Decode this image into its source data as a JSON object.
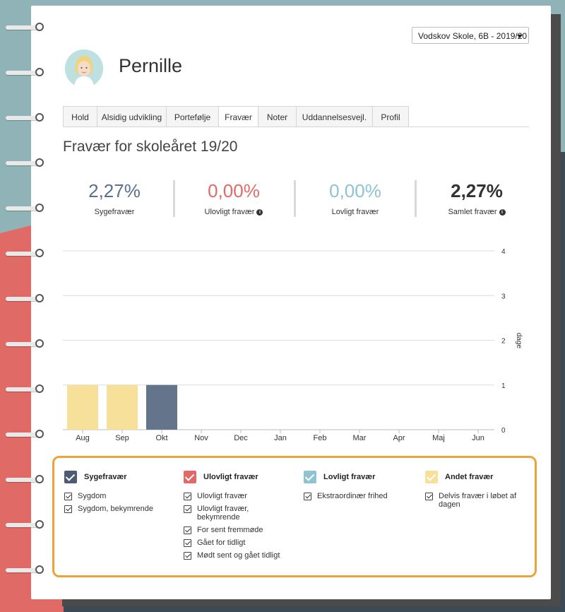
{
  "school_selector": {
    "value": "Vodskov Skole, 6B - 2019/20"
  },
  "student": {
    "name": "Pernille"
  },
  "tabs": [
    {
      "label": "Hold",
      "active": false
    },
    {
      "label": "Alsidig udvikling",
      "active": false
    },
    {
      "label": "Portefølje",
      "active": false
    },
    {
      "label": "Fravær",
      "active": true
    },
    {
      "label": "Noter",
      "active": false
    },
    {
      "label": "Uddannelsesvejl.",
      "active": false
    },
    {
      "label": "Profil",
      "active": false
    }
  ],
  "section_title": "Fravær for skoleåret 19/20",
  "stats": [
    {
      "value": "2,27%",
      "label": "Sygefravær",
      "info": false,
      "color": "#5b6f8e"
    },
    {
      "value": "0,00%",
      "label": "Ulovligt fravær",
      "info": true,
      "color": "#e06b66"
    },
    {
      "value": "0,00%",
      "label": "Lovligt fravær",
      "info": false,
      "color": "#8ec3cf"
    },
    {
      "value": "2,27%",
      "label": "Samlet fravær",
      "info": true,
      "color": "#333333"
    }
  ],
  "chart_data": {
    "type": "bar",
    "categories": [
      "Aug",
      "Sep",
      "Okt",
      "Nov",
      "Dec",
      "Jan",
      "Feb",
      "Mar",
      "Apr",
      "Maj",
      "Jun"
    ],
    "series": [
      {
        "name": "Sygefravær",
        "color": "#64748b",
        "values": [
          0,
          0,
          1,
          0,
          0,
          0,
          0,
          0,
          0,
          0,
          0
        ]
      },
      {
        "name": "Andet fravær",
        "color": "#f6e09a",
        "values": [
          1,
          1,
          0,
          0,
          0,
          0,
          0,
          0,
          0,
          0,
          0
        ]
      }
    ],
    "ylabel": "dage",
    "ylim": [
      0,
      4
    ],
    "yticks": [
      "0",
      "1",
      "2",
      "3",
      "4"
    ],
    "grid": true,
    "axis_side": "right"
  },
  "legend": [
    {
      "title": "Sygefravær",
      "color": "#4f5b73",
      "items": [
        "Sygdom",
        "Sygdom, bekymrende"
      ]
    },
    {
      "title": "Ulovligt fravær",
      "color": "#e06b66",
      "items": [
        "Ulovligt fravær",
        "Ulovligt fravær, bekymrende",
        "For sent fremmøde",
        "Gået for tidligt",
        "Mødt sent og gået tidligt"
      ]
    },
    {
      "title": "Lovligt fravær",
      "color": "#8ec3cf",
      "items": [
        "Ekstraordinær frihed"
      ]
    },
    {
      "title": "Andet fravær",
      "color": "#f6e09a",
      "items": [
        "Delvis fravær i løbet af dagen"
      ]
    }
  ]
}
